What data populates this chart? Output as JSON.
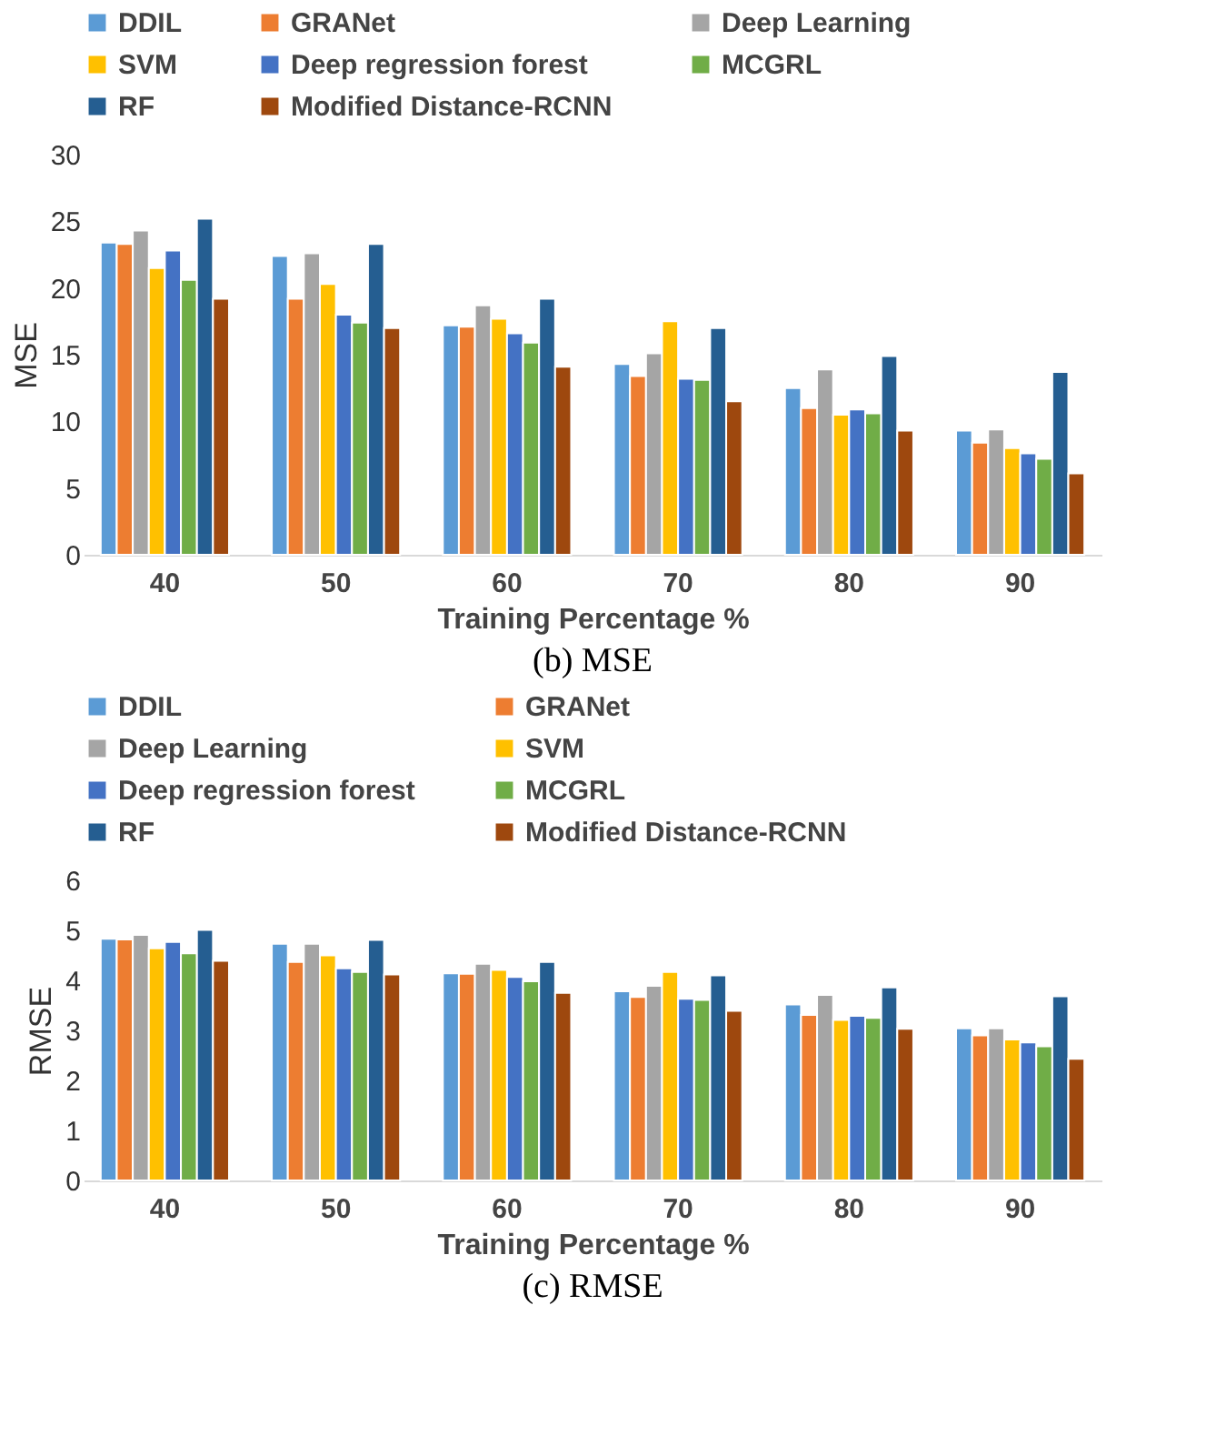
{
  "chart_data": [
    {
      "type": "bar",
      "title": "(b) MSE",
      "xlabel": "Training Percentage %",
      "ylabel": "MSE",
      "categories": [
        "40",
        "50",
        "60",
        "70",
        "80",
        "90"
      ],
      "ylim": [
        0,
        30
      ],
      "yticks": [
        0,
        5,
        10,
        15,
        20,
        25,
        30
      ],
      "grid": false,
      "legend": "top",
      "series": [
        {
          "name": "DDIL",
          "color": "#5b9bd5",
          "values": [
            23.4,
            22.4,
            17.2,
            14.3,
            12.5,
            9.3
          ]
        },
        {
          "name": "GRANet",
          "color": "#ed7d31",
          "values": [
            23.3,
            19.2,
            17.1,
            13.4,
            11.0,
            8.4
          ]
        },
        {
          "name": "Deep Learning",
          "color": "#a5a5a5",
          "values": [
            24.3,
            22.6,
            18.7,
            15.1,
            13.9,
            9.4
          ]
        },
        {
          "name": "SVM",
          "color": "#ffc000",
          "values": [
            21.5,
            20.3,
            17.7,
            17.5,
            10.5,
            8.0
          ]
        },
        {
          "name": "Deep regression forest",
          "color": "#4472c4",
          "values": [
            22.8,
            18.0,
            16.6,
            13.2,
            10.9,
            7.6
          ]
        },
        {
          "name": "MCGRL",
          "color": "#70ad47",
          "values": [
            20.6,
            17.4,
            15.9,
            13.1,
            10.6,
            7.2
          ]
        },
        {
          "name": "RF",
          "color": "#255e91",
          "values": [
            25.2,
            23.3,
            19.2,
            17.0,
            14.9,
            13.7
          ]
        },
        {
          "name": "Modified Distance-RCNN",
          "color": "#9e480e",
          "values": [
            19.2,
            17.0,
            14.1,
            11.5,
            9.3,
            6.1
          ]
        }
      ]
    },
    {
      "type": "bar",
      "title": "(c) RMSE",
      "xlabel": "Training Percentage %",
      "ylabel": "RMSE",
      "categories": [
        "40",
        "50",
        "60",
        "70",
        "80",
        "90"
      ],
      "ylim": [
        0,
        6
      ],
      "yticks": [
        0,
        1,
        2,
        3,
        4,
        5,
        6
      ],
      "grid": false,
      "legend": "top",
      "series": [
        {
          "name": "DDIL",
          "color": "#5b9bd5",
          "values": [
            4.83,
            4.73,
            4.14,
            3.78,
            3.52,
            3.04
          ]
        },
        {
          "name": "GRANet",
          "color": "#ed7d31",
          "values": [
            4.82,
            4.37,
            4.13,
            3.67,
            3.31,
            2.9
          ]
        },
        {
          "name": "Deep Learning",
          "color": "#a5a5a5",
          "values": [
            4.91,
            4.73,
            4.33,
            3.89,
            3.71,
            3.04
          ]
        },
        {
          "name": "SVM",
          "color": "#ffc000",
          "values": [
            4.64,
            4.5,
            4.21,
            4.17,
            3.21,
            2.82
          ]
        },
        {
          "name": "Deep regression forest",
          "color": "#4472c4",
          "values": [
            4.77,
            4.24,
            4.07,
            3.63,
            3.29,
            2.76
          ]
        },
        {
          "name": "MCGRL",
          "color": "#70ad47",
          "values": [
            4.54,
            4.17,
            3.98,
            3.61,
            3.25,
            2.68
          ]
        },
        {
          "name": "RF",
          "color": "#255e91",
          "values": [
            5.01,
            4.81,
            4.37,
            4.1,
            3.86,
            3.68
          ]
        },
        {
          "name": "Modified Distance-RCNN",
          "color": "#9e480e",
          "values": [
            4.39,
            4.12,
            3.75,
            3.39,
            3.03,
            2.43
          ]
        }
      ]
    }
  ]
}
